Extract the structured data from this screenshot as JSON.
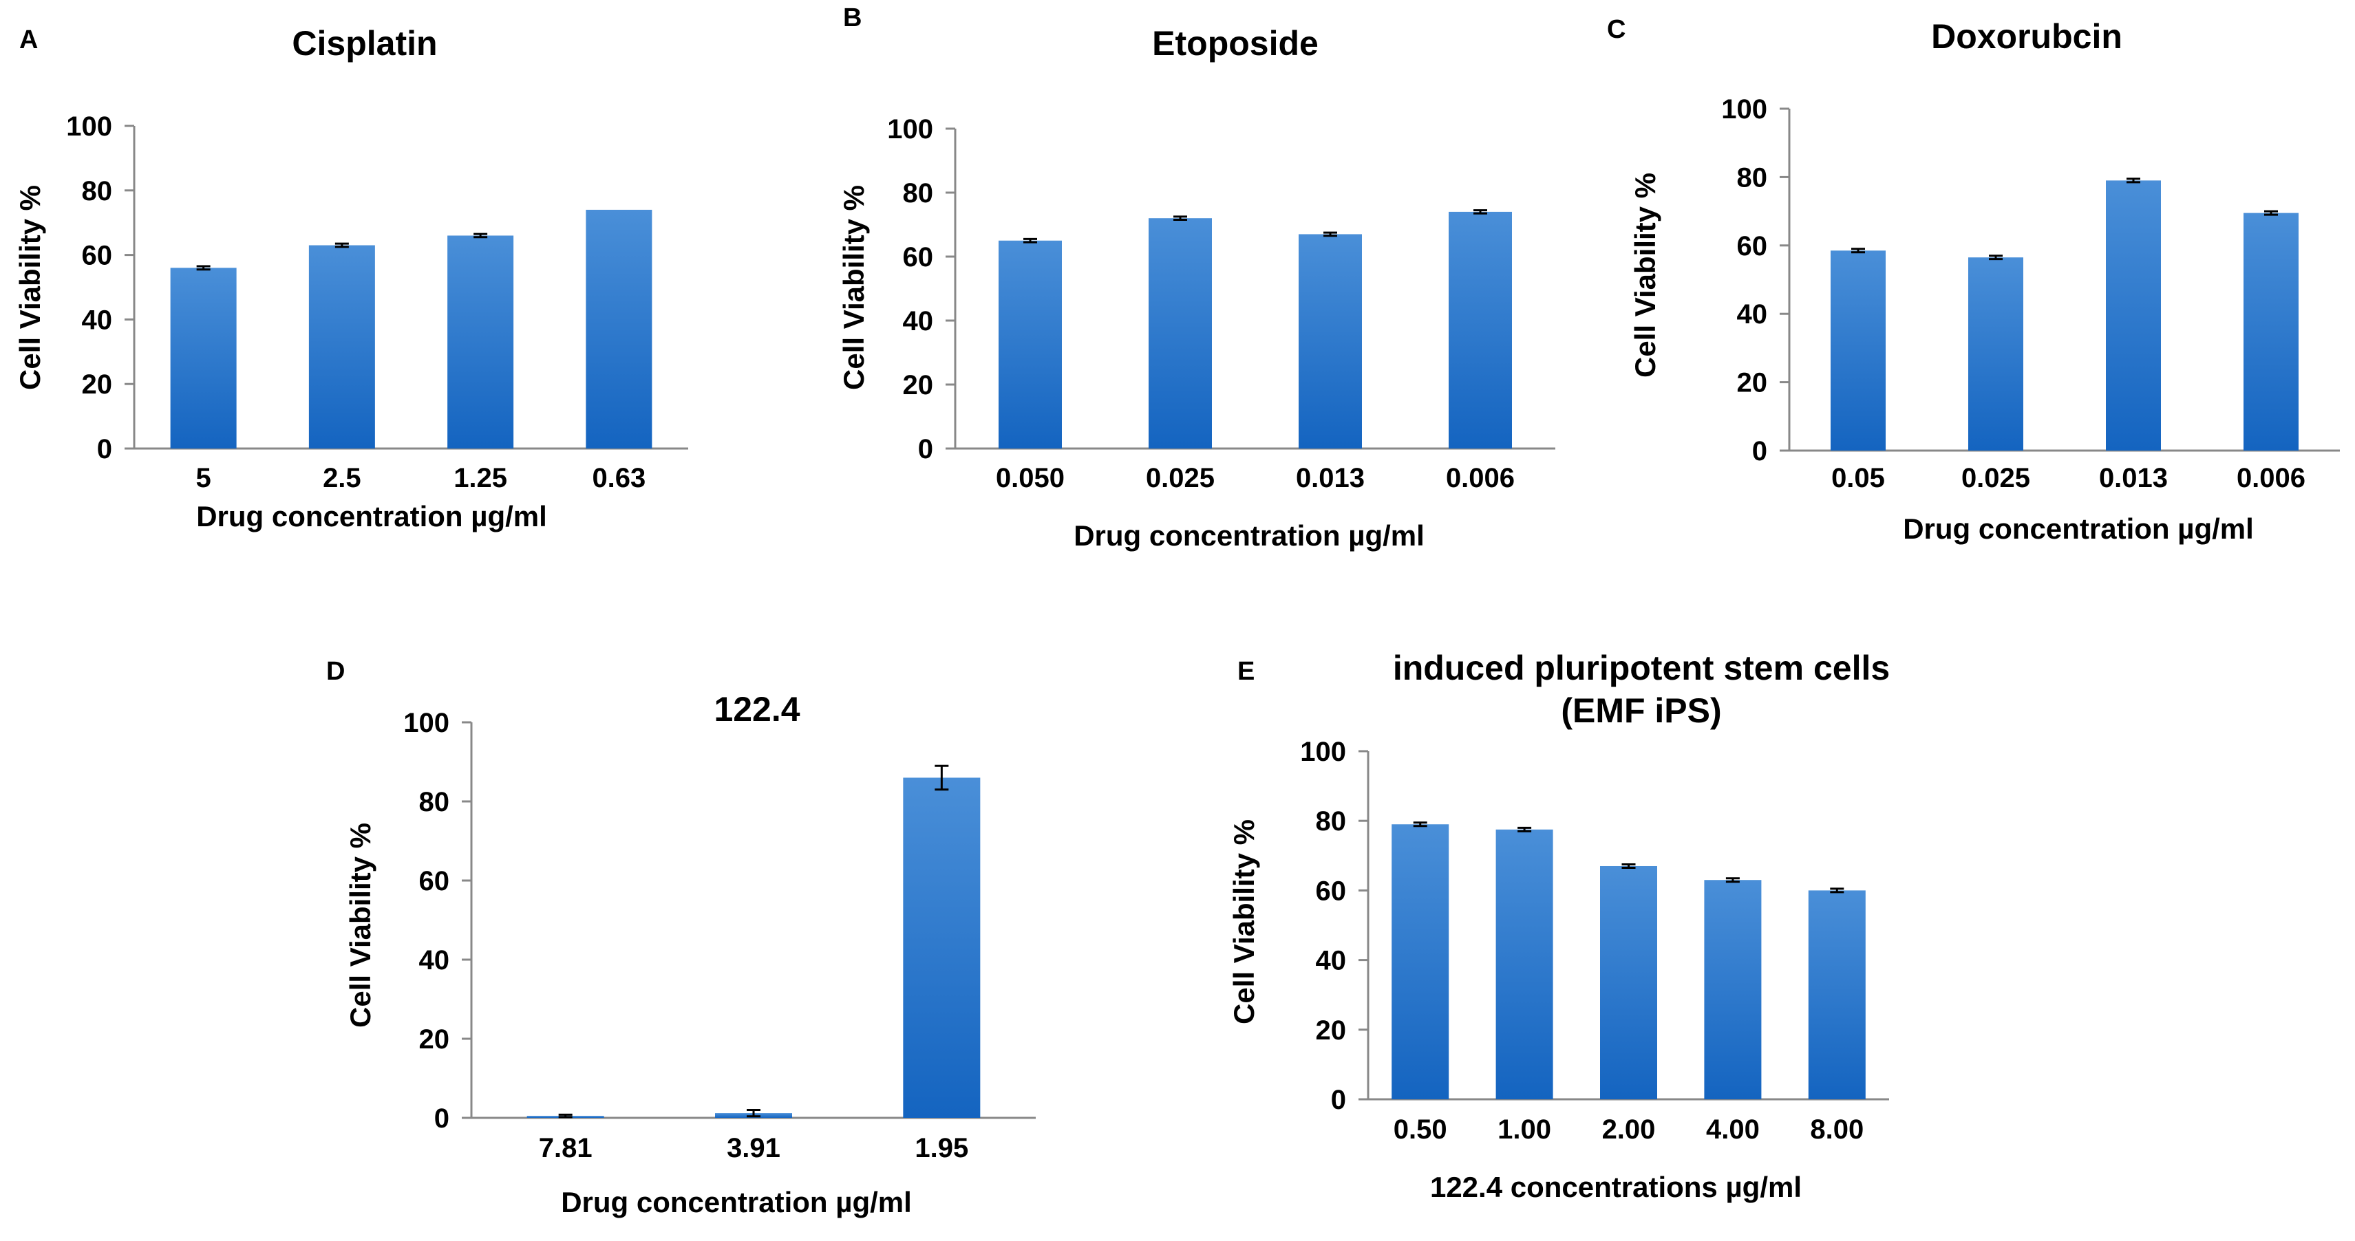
{
  "chart_data": [
    {
      "panel": "A",
      "type": "bar",
      "title": "Cisplatin",
      "xlabel": "Drug concentration µg/ml",
      "ylabel": "Cell Viability %",
      "ylim": [
        0,
        100
      ],
      "yticks": [
        "0",
        "20",
        "40",
        "60",
        "80",
        "100"
      ],
      "categories": [
        "5",
        "2.5",
        "1.25",
        "0.63"
      ],
      "values": [
        56,
        63,
        66,
        74
      ],
      "errors": [
        0.5,
        0.5,
        0.5,
        0
      ],
      "grid": false
    },
    {
      "panel": "B",
      "type": "bar",
      "title": "Etoposide",
      "xlabel": "Drug concentration µg/ml",
      "ylabel": "Cell Viability %",
      "ylim": [
        0,
        100
      ],
      "yticks": [
        "0",
        "20",
        "40",
        "60",
        "80",
        "100"
      ],
      "categories": [
        "0.050",
        "0.025",
        "0.013",
        "0.006"
      ],
      "values": [
        65,
        72,
        67,
        74
      ],
      "errors": [
        0.5,
        0.5,
        0.5,
        0.5
      ],
      "grid": false
    },
    {
      "panel": "C",
      "type": "bar",
      "title": "Doxorubcin",
      "xlabel": "Drug concentration µg/ml",
      "ylabel": "Cell Viability %",
      "ylim": [
        0,
        100
      ],
      "yticks": [
        "0",
        "20",
        "40",
        "60",
        "80",
        "100"
      ],
      "categories": [
        "0.05",
        "0.025",
        "0.013",
        "0.006"
      ],
      "values": [
        58.5,
        56.5,
        79,
        69.5
      ],
      "errors": [
        0.5,
        0.5,
        0.5,
        0.5
      ],
      "grid": false
    },
    {
      "panel": "D",
      "type": "bar",
      "title": "122.4",
      "xlabel": "Drug concentration µg/ml",
      "ylabel": "Cell Viability %",
      "ylim": [
        0,
        100
      ],
      "yticks": [
        "0",
        "20",
        "40",
        "60",
        "80",
        "100"
      ],
      "categories": [
        "7.81",
        "3.91",
        "1.95"
      ],
      "values": [
        0.5,
        1.2,
        86
      ],
      "errors": [
        0.3,
        0.8,
        3
      ],
      "grid": false
    },
    {
      "panel": "E",
      "type": "bar",
      "title": "induced pluripotent stem cells",
      "subtitle": "(EMF iPS)",
      "xlabel": "122.4 concentrations µg/ml",
      "ylabel": "Cell Viability %",
      "ylim": [
        0,
        100
      ],
      "yticks": [
        "0",
        "20",
        "40",
        "60",
        "80",
        "100"
      ],
      "categories": [
        "0.50",
        "1.00",
        "2.00",
        "4.00",
        "8.00"
      ],
      "values": [
        79,
        77.5,
        67,
        63,
        60
      ],
      "errors": [
        0.5,
        0.5,
        0.5,
        0.5,
        0.5
      ],
      "grid": false
    }
  ],
  "colors": {
    "bar_top": "#4a8fd8",
    "bar_bottom": "#1464c0",
    "axis": "#888888",
    "text": "#000000"
  }
}
